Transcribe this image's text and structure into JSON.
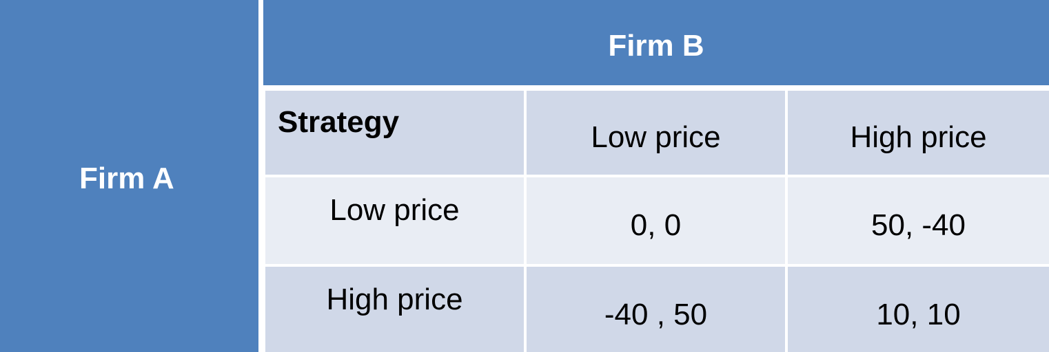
{
  "header": {
    "firm_a": "Firm A",
    "firm_b": "Firm B"
  },
  "table": {
    "corner_label": "Strategy",
    "columns": [
      "Low price",
      "High price"
    ],
    "rows": [
      {
        "label": "Low price",
        "cells": [
          "0, 0",
          "50, -40"
        ]
      },
      {
        "label": "High price",
        "cells": [
          "-40 , 50",
          "10, 10"
        ]
      }
    ]
  },
  "colors": {
    "header_blue": "#4f81bd",
    "row_dark": "#d0d8e8",
    "row_light": "#e9edf4",
    "header_text": "#ffffff"
  }
}
